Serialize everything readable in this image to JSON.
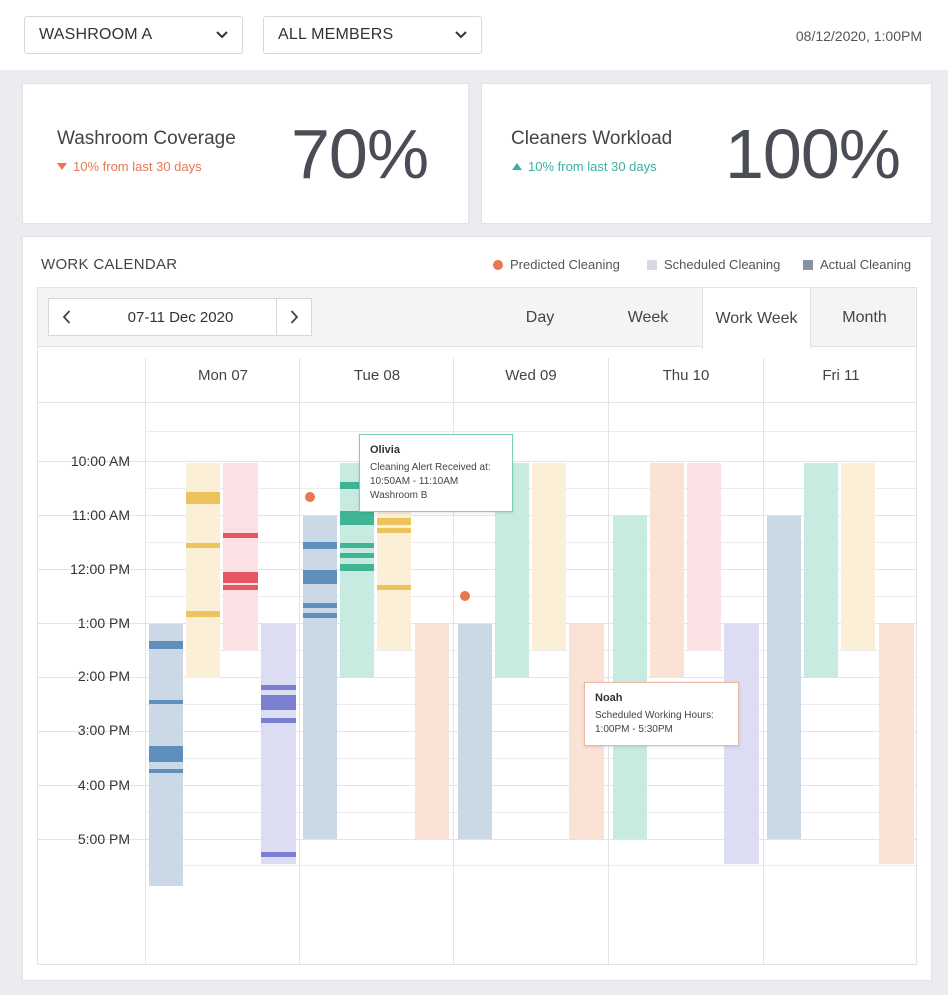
{
  "filters": {
    "location": "WASHROOM A",
    "members": "ALL MEMBERS",
    "datetime": "08/12/2020, 1:00PM"
  },
  "cards": {
    "coverage": {
      "title": "Washroom Coverage",
      "change": "10% from last 30 days",
      "direction": "down",
      "value": "70%"
    },
    "workload": {
      "title": "Cleaners Workload",
      "change": "10% from last 30 days",
      "direction": "up",
      "value": "100%"
    }
  },
  "calendar": {
    "title": "WORK CALENDAR",
    "legend": [
      {
        "label": "Predicted Cleaning",
        "color": "#e8784f"
      },
      {
        "label": "Scheduled Cleaning",
        "color": "#d5dae2"
      },
      {
        "label": "Actual Cleaning",
        "color": "#8793a6"
      }
    ],
    "date_range": "07-11 Dec 2020",
    "views": [
      "Day",
      "Week",
      "Work Week",
      "Month"
    ],
    "active_view": "Work Week",
    "days": [
      "Mon 07",
      "Tue 08",
      "Wed 09",
      "Thu 10",
      "Fri 11"
    ],
    "times": [
      "10:00 AM",
      "11:00 AM",
      "12:00 PM",
      "1:00 PM",
      "2:00 PM",
      "3:00 PM",
      "4:00 PM",
      "5:00 PM"
    ],
    "tooltips": {
      "olivia": {
        "name": "Olivia",
        "line1": "Cleaning Alert Received at:",
        "line2": "10:50AM - 11:10AM",
        "line3": "Washroom B"
      },
      "noah": {
        "name": "Noah",
        "line1": "Scheduled Working Hours:",
        "line2": "1:00PM - 5:30PM"
      }
    }
  }
}
